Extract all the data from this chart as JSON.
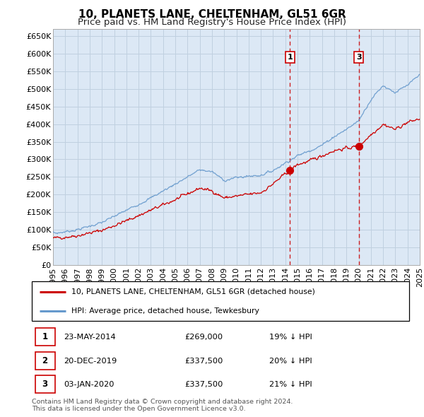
{
  "title": "10, PLANETS LANE, CHELTENHAM, GL51 6GR",
  "subtitle": "Price paid vs. HM Land Registry's House Price Index (HPI)",
  "ylim": [
    0,
    670000
  ],
  "yticks": [
    0,
    50000,
    100000,
    150000,
    200000,
    250000,
    300000,
    350000,
    400000,
    450000,
    500000,
    550000,
    600000,
    650000
  ],
  "background_color": "#ffffff",
  "chart_bg_color": "#dce8f5",
  "grid_color": "#c0d0e0",
  "hpi_color": "#6699cc",
  "price_color": "#cc0000",
  "vline_color": "#cc0000",
  "transactions": [
    {
      "label": "1",
      "date": "2014-05-23",
      "x": 2014.39,
      "price": 269000
    },
    {
      "label": "2",
      "date": "2019-12-20",
      "x": 2019.97,
      "price": 337500
    },
    {
      "label": "3",
      "date": "2020-01-03",
      "x": 2020.01,
      "price": 337500
    }
  ],
  "legend_entries": [
    "10, PLANETS LANE, CHELTENHAM, GL51 6GR (detached house)",
    "HPI: Average price, detached house, Tewkesbury"
  ],
  "table_rows": [
    [
      "1",
      "23-MAY-2014",
      "£269,000",
      "19% ↓ HPI"
    ],
    [
      "2",
      "20-DEC-2019",
      "£337,500",
      "20% ↓ HPI"
    ],
    [
      "3",
      "03-JAN-2020",
      "£337,500",
      "21% ↓ HPI"
    ]
  ],
  "footer": "Contains HM Land Registry data © Crown copyright and database right 2024.\nThis data is licensed under the Open Government Licence v3.0.",
  "title_fontsize": 11,
  "subtitle_fontsize": 9.5,
  "tick_fontsize": 8
}
